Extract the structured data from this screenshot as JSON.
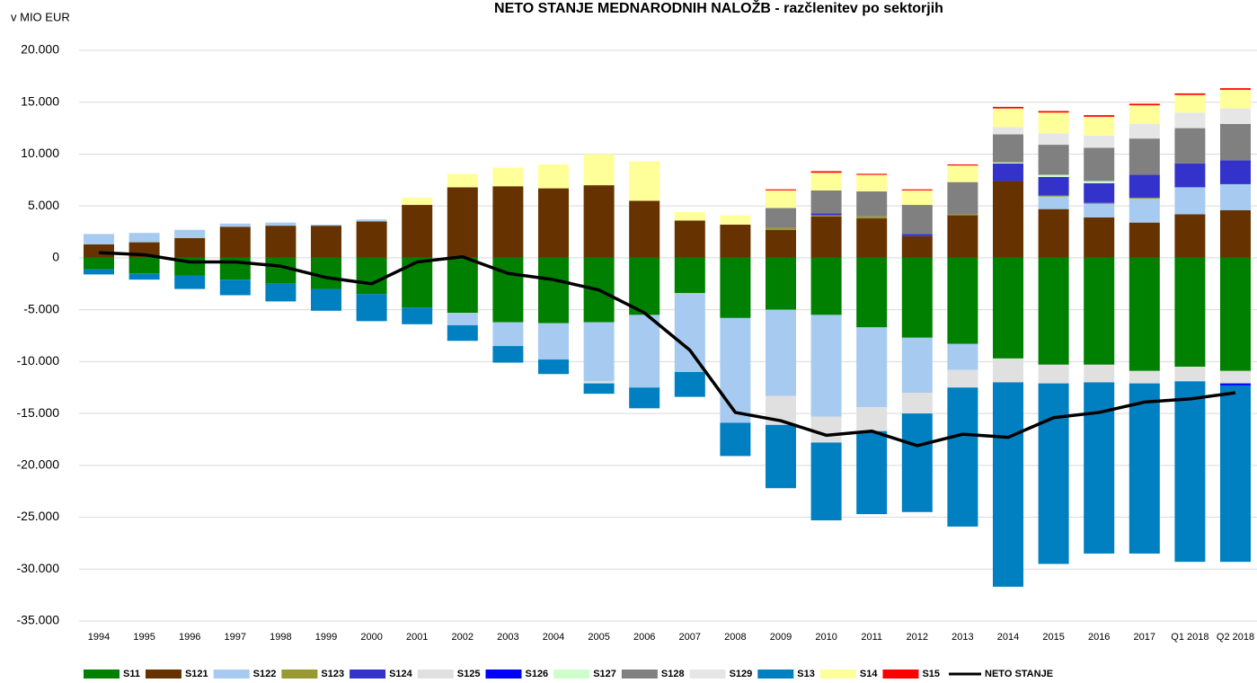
{
  "chart_data": {
    "type": "bar",
    "stacked": true,
    "title": "NETO STANJE MEDNARODNIH NALOŽB - razčlenitev po sektorjih",
    "y_axis_label": "v MIO EUR",
    "categories": [
      "1994",
      "1995",
      "1996",
      "1997",
      "1998",
      "1999",
      "2000",
      "2001",
      "2002",
      "2003",
      "2004",
      "2005",
      "2006",
      "2007",
      "2008",
      "2009",
      "2010",
      "2011",
      "2012",
      "2013",
      "2014",
      "2015",
      "2016",
      "2017",
      "Q1 2018",
      "Q2 2018"
    ],
    "ylim": [
      -35000,
      20000
    ],
    "yticks": [
      {
        "value": -35000,
        "label": "-35.000"
      },
      {
        "value": -30000,
        "label": "-30.000"
      },
      {
        "value": -25000,
        "label": "-25.000"
      },
      {
        "value": -20000,
        "label": "-20.000"
      },
      {
        "value": -15000,
        "label": "-15.000"
      },
      {
        "value": -10000,
        "label": "-10.000"
      },
      {
        "value": -5000,
        "label": "-5.000"
      },
      0,
      {
        "value": 5000,
        "label": "5.000"
      },
      {
        "value": 10000,
        "label": "10.000"
      },
      {
        "value": 15000,
        "label": "15.000"
      },
      {
        "value": 20000,
        "label": "20.000"
      }
    ],
    "grid": true,
    "legend": "bottom",
    "series": [
      {
        "name": "S11",
        "color": "#008000",
        "values": [
          -1100,
          -1500,
          -1700,
          -2100,
          -2500,
          -3000,
          -3500,
          -4800,
          -5300,
          -6200,
          -6300,
          -6200,
          -5500,
          -3400,
          -5800,
          -5000,
          -5500,
          -6700,
          -7700,
          -8300,
          -9700,
          -10300,
          -10300,
          -10900,
          -10500,
          -10900
        ]
      },
      {
        "name": "S121",
        "color": "#663300",
        "values": [
          1300,
          1500,
          1900,
          3000,
          3100,
          3100,
          3500,
          5100,
          6800,
          6900,
          6700,
          7000,
          5500,
          3600,
          3200,
          2700,
          4000,
          3800,
          2100,
          4100,
          7400,
          4700,
          3900,
          3400,
          4200,
          4600
        ]
      },
      {
        "name": "S122",
        "color": "#a6caf0",
        "values": [
          1000,
          900,
          800,
          300,
          300,
          100,
          200,
          0,
          -1200,
          -2300,
          -3500,
          -5700,
          -7000,
          -7600,
          -10100,
          -8300,
          -9800,
          -7700,
          -5300,
          -2500,
          0,
          1200,
          1300,
          2300,
          2600,
          2500
        ]
      },
      {
        "name": "S123",
        "color": "#999933",
        "values": [
          0,
          0,
          0,
          0,
          0,
          0,
          0,
          0,
          0,
          0,
          0,
          0,
          0,
          0,
          0,
          200,
          100,
          200,
          0,
          100,
          0,
          100,
          100,
          100,
          0,
          0
        ]
      },
      {
        "name": "S124",
        "color": "#3333cc",
        "values": [
          0,
          0,
          0,
          0,
          0,
          0,
          0,
          0,
          0,
          0,
          0,
          0,
          0,
          0,
          0,
          0,
          200,
          0,
          200,
          0,
          1700,
          1800,
          1900,
          2200,
          2300,
          2300
        ]
      },
      {
        "name": "S125",
        "color": "#e0e0e0",
        "values": [
          0,
          0,
          0,
          0,
          0,
          0,
          0,
          0,
          0,
          0,
          0,
          -200,
          0,
          0,
          0,
          -2800,
          -2500,
          -2300,
          -2000,
          -1700,
          -2300,
          -1800,
          -1700,
          -1200,
          -1400,
          -1200
        ]
      },
      {
        "name": "S126",
        "color": "#0000ff",
        "values": [
          0,
          0,
          0,
          0,
          0,
          0,
          0,
          0,
          0,
          0,
          0,
          0,
          0,
          0,
          0,
          0,
          0,
          0,
          0,
          0,
          0,
          0,
          0,
          0,
          0,
          -200
        ]
      },
      {
        "name": "S127",
        "color": "#ccffcc",
        "values": [
          0,
          0,
          0,
          0,
          0,
          0,
          0,
          0,
          0,
          0,
          0,
          0,
          0,
          0,
          0,
          0,
          0,
          0,
          0,
          0,
          100,
          200,
          200,
          0,
          0,
          0
        ]
      },
      {
        "name": "S128",
        "color": "#808080",
        "values": [
          0,
          0,
          0,
          0,
          0,
          0,
          0,
          0,
          0,
          0,
          0,
          0,
          0,
          0,
          0,
          1900,
          2200,
          2400,
          2800,
          3100,
          2700,
          2900,
          3200,
          3500,
          3400,
          3500
        ]
      },
      {
        "name": "S129",
        "color": "#e6e6e6",
        "values": [
          0,
          0,
          0,
          0,
          0,
          0,
          0,
          0,
          0,
          0,
          0,
          0,
          0,
          0,
          0,
          0,
          0,
          0,
          0,
          0,
          700,
          1100,
          1200,
          1400,
          1500,
          1500
        ]
      },
      {
        "name": "S13",
        "color": "#0080c0",
        "values": [
          -500,
          -600,
          -1300,
          -1500,
          -1700,
          -2100,
          -2600,
          -1600,
          -1500,
          -1600,
          -1400,
          -1000,
          -2000,
          -2400,
          -3200,
          -6100,
          -7500,
          -8000,
          -9500,
          -13400,
          -19700,
          -17400,
          -16500,
          -16400,
          -17400,
          -17000
        ]
      },
      {
        "name": "S14",
        "color": "#ffff99",
        "values": [
          0,
          0,
          0,
          0,
          0,
          0,
          0,
          700,
          1300,
          1800,
          2300,
          3000,
          3800,
          800,
          900,
          1700,
          1700,
          1600,
          1400,
          1600,
          1800,
          2000,
          1800,
          1800,
          1700,
          1800
        ]
      },
      {
        "name": "S15",
        "color": "#ff0000",
        "values": [
          0,
          0,
          0,
          0,
          0,
          0,
          0,
          0,
          0,
          0,
          0,
          0,
          0,
          0,
          0,
          100,
          150,
          100,
          100,
          100,
          150,
          150,
          150,
          150,
          150,
          150
        ]
      },
      {
        "name": "NETO STANJE",
        "type": "line",
        "color": "#000000",
        "values": [
          500,
          300,
          -400,
          -400,
          -800,
          -1900,
          -2500,
          -400,
          100,
          -1500,
          -2100,
          -3100,
          -5300,
          -8900,
          -14900,
          -15700,
          -17100,
          -16700,
          -18100,
          -17000,
          -17300,
          -15400,
          -14900,
          -13900,
          -13600,
          -13000
        ]
      }
    ]
  }
}
